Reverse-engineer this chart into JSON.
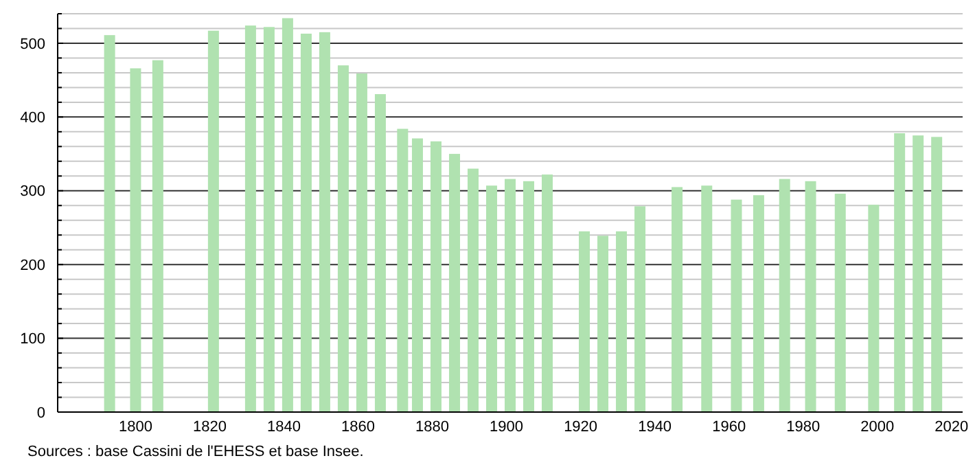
{
  "chart_data": {
    "type": "bar",
    "x": [
      1793,
      1800,
      1806,
      1821,
      1831,
      1836,
      1841,
      1846,
      1851,
      1856,
      1861,
      1866,
      1872,
      1876,
      1881,
      1886,
      1891,
      1896,
      1901,
      1906,
      1911,
      1921,
      1926,
      1931,
      1936,
      1946,
      1954,
      1962,
      1968,
      1975,
      1982,
      1990,
      1999,
      2006,
      2011,
      2016
    ],
    "values": [
      511,
      466,
      477,
      517,
      524,
      522,
      534,
      513,
      515,
      470,
      459,
      431,
      384,
      371,
      367,
      350,
      330,
      307,
      316,
      313,
      322,
      245,
      239,
      245,
      279,
      305,
      307,
      288,
      294,
      316,
      313,
      296,
      281,
      378,
      375,
      373
    ],
    "color": "#b0e2b0",
    "xlim": [
      1779,
      2023
    ],
    "xticks": [
      1800,
      1820,
      1840,
      1860,
      1880,
      1900,
      1920,
      1940,
      1960,
      1980,
      2000,
      2020
    ],
    "ylim": [
      0,
      540
    ],
    "yticks": [
      0,
      {
        "value": 20,
        "label": null
      },
      {
        "value": 40,
        "label": null
      },
      {
        "value": 60,
        "label": null
      },
      {
        "value": 80,
        "label": null
      },
      100,
      {
        "value": 120,
        "label": null
      },
      {
        "value": 140,
        "label": null
      },
      {
        "value": 160,
        "label": null
      },
      {
        "value": 180,
        "label": null
      },
      200,
      {
        "value": 220,
        "label": null
      },
      {
        "value": 240,
        "label": null
      },
      {
        "value": 260,
        "label": null
      },
      {
        "value": 280,
        "label": null
      },
      300,
      {
        "value": 320,
        "label": null
      },
      {
        "value": 340,
        "label": null
      },
      {
        "value": 360,
        "label": null
      },
      {
        "value": 380,
        "label": null
      },
      400,
      {
        "value": 420,
        "label": null
      },
      {
        "value": 440,
        "label": null
      },
      {
        "value": 460,
        "label": null
      },
      {
        "value": 480,
        "label": null
      },
      500,
      {
        "value": 520,
        "label": null
      },
      {
        "value": 540,
        "label": null
      }
    ],
    "grid": true,
    "annotations": [
      "Sources : base Cassini de l'EHESS et base Insee."
    ]
  }
}
